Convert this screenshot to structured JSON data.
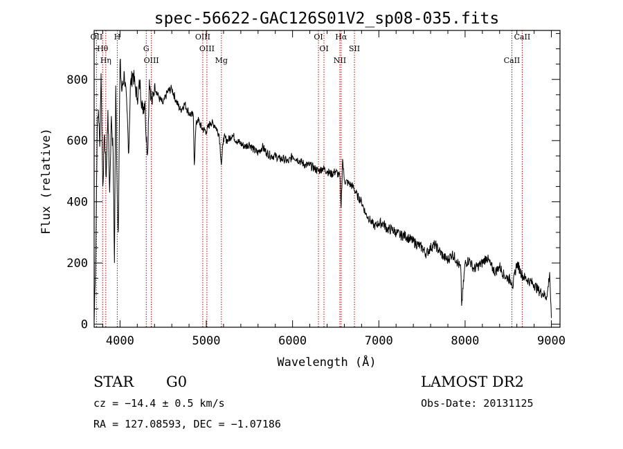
{
  "chart_data": {
    "type": "line",
    "title": "spec-56622-GAC126S01V2_sp08-035.fits",
    "xlabel": "Wavelength (Å)",
    "ylabel": "Flux (relative)",
    "xlim": [
      3700,
      9100
    ],
    "ylim": [
      -10,
      960
    ],
    "x_ticks": [
      4000,
      5000,
      6000,
      7000,
      8000,
      9000
    ],
    "y_ticks": [
      0,
      200,
      400,
      600,
      800
    ],
    "series": [
      {
        "x": [
          3700,
          3720,
          3735,
          3750,
          3765,
          3780,
          3800,
          3820,
          3840,
          3860,
          3880,
          3900,
          3920,
          3935,
          3950,
          3968,
          3980,
          4000,
          4020,
          4050,
          4080,
          4101,
          4120,
          4150,
          4180,
          4200,
          4230,
          4260,
          4290,
          4300,
          4320,
          4340,
          4370,
          4400,
          4450,
          4500,
          4550,
          4600,
          4650,
          4700,
          4750,
          4800,
          4850,
          4861,
          4880,
          4900,
          4950,
          5000,
          5050,
          5100,
          5150,
          5175,
          5200,
          5250,
          5300,
          5350,
          5400,
          5450,
          5500,
          5550,
          5600,
          5650,
          5700,
          5750,
          5800,
          5850,
          5900,
          5950,
          6000,
          6050,
          6100,
          6150,
          6200,
          6250,
          6300,
          6350,
          6400,
          6450,
          6500,
          6550,
          6563,
          6580,
          6600,
          6650,
          6700,
          6750,
          6800,
          6850,
          6900,
          6950,
          7000,
          7050,
          7100,
          7150,
          7200,
          7250,
          7300,
          7350,
          7400,
          7450,
          7500,
          7550,
          7600,
          7650,
          7700,
          7750,
          7800,
          7850,
          7900,
          7950,
          7960,
          8000,
          8050,
          8100,
          8150,
          8200,
          8250,
          8300,
          8350,
          8400,
          8450,
          8500,
          8542,
          8550,
          8600,
          8662,
          8700,
          8750,
          8800,
          8850,
          8900,
          8950,
          8980,
          9000
        ],
        "y": [
          10,
          250,
          640,
          700,
          580,
          820,
          450,
          620,
          480,
          700,
          430,
          680,
          560,
          200,
          780,
          420,
          300,
          860,
          760,
          820,
          700,
          560,
          780,
          820,
          770,
          740,
          790,
          700,
          730,
          620,
          560,
          800,
          720,
          780,
          740,
          720,
          760,
          770,
          730,
          700,
          720,
          690,
          680,
          520,
          650,
          670,
          640,
          630,
          660,
          650,
          620,
          520,
          610,
          600,
          620,
          600,
          590,
          580,
          590,
          570,
          560,
          580,
          560,
          550,
          550,
          540,
          540,
          530,
          550,
          540,
          530,
          520,
          520,
          510,
          500,
          510,
          500,
          490,
          500,
          480,
          380,
          540,
          470,
          460,
          450,
          420,
          400,
          360,
          340,
          320,
          330,
          330,
          310,
          310,
          300,
          290,
          290,
          280,
          270,
          260,
          250,
          230,
          250,
          260,
          240,
          220,
          210,
          230,
          210,
          180,
          60,
          200,
          210,
          180,
          190,
          200,
          220,
          190,
          170,
          190,
          160,
          150,
          140,
          120,
          200,
          160,
          150,
          140,
          130,
          110,
          100,
          90,
          170,
          20
        ]
      }
    ],
    "spectral_lines": [
      {
        "label": "OII",
        "x": 3727
      },
      {
        "label": "Hθ",
        "x": 3798
      },
      {
        "label": "Hη",
        "x": 3835
      },
      {
        "label": "H",
        "x": 3968
      },
      {
        "label": "G",
        "x": 4304
      },
      {
        "label": "OIII",
        "x": 4363
      },
      {
        "label": "OIII",
        "x": 4959
      },
      {
        "label": "OIII",
        "x": 5007
      },
      {
        "label": "Mg",
        "x": 5175
      },
      {
        "label": "OI",
        "x": 6300
      },
      {
        "label": "OI",
        "x": 6364
      },
      {
        "label": "NII",
        "x": 6548
      },
      {
        "label": "Hα",
        "x": 6563
      },
      {
        "label": "SII",
        "x": 6717
      },
      {
        "label": "CaII",
        "x": 8542
      },
      {
        "label": "CaII",
        "x": 8662
      }
    ]
  },
  "info": {
    "object_class": "STAR",
    "subclass": "G0",
    "redshift": "cz = −14.4 ± 0.5 km/s",
    "coords": "RA = 127.08593, DEC =  −1.07186",
    "survey": "LAMOST DR2",
    "obs_date": "Obs-Date: 20131125"
  }
}
